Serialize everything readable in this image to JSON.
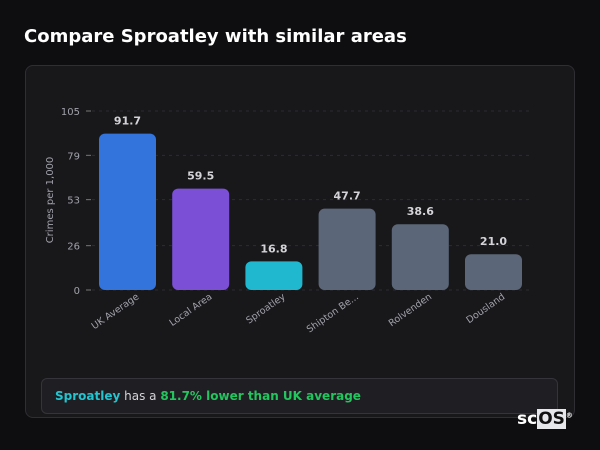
{
  "header": {
    "title": "Compare Sproatley with similar areas"
  },
  "chart_data": {
    "type": "bar",
    "categories": [
      "UK Average",
      "Local Area",
      "Sproatley",
      "Shipton Be...",
      "Rolvenden",
      "Dousland"
    ],
    "values": [
      91.7,
      59.5,
      16.8,
      47.7,
      38.6,
      21.0
    ],
    "value_labels": [
      "91.7",
      "59.5",
      "16.8",
      "47.7",
      "38.6",
      "21.0"
    ],
    "colors": [
      "#3273dc",
      "#7b4fd6",
      "#1fb8cf",
      "#5b6778",
      "#5b6778",
      "#5b6778"
    ],
    "ylabel": "Crimes per 1,000",
    "xlabel": "",
    "ylim": [
      0,
      105
    ],
    "yticks": [
      0,
      26,
      53,
      79,
      105
    ],
    "grid": true
  },
  "footer": {
    "area": "Sproatley",
    "mid": " has a ",
    "highlight": "81.7% lower than UK average"
  },
  "logo": {
    "text1": "sc",
    "text2": "OS",
    "mark": "®"
  }
}
